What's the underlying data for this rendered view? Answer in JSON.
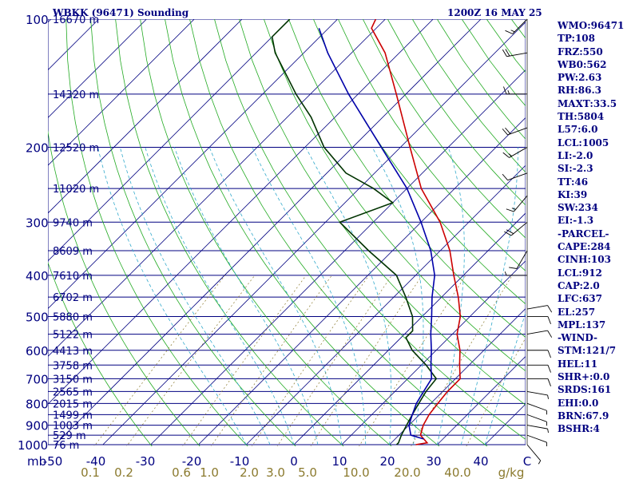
{
  "header": {
    "station": "WBKK (96471) Sounding",
    "datetime": "1200Z 16 MAY 25"
  },
  "indices": [
    "WMO:96471",
    "TP:108",
    "FRZ:550",
    "WB0:562",
    "PW:2.63",
    "RH:86.3",
    "MAXT:33.5",
    "TH:5804",
    "L57:6.0",
    "LCL:1005",
    "LI:-2.0",
    "SI:-2.3",
    "TT:46",
    "KI:39",
    "SW:234",
    "EI:-1.3",
    "-PARCEL-",
    "CAPE:284",
    "CINH:103",
    "LCL:912",
    "CAP:2.0",
    "LFC:637",
    "EL:257",
    "MPL:137",
    "-WIND-",
    "STM:121/7",
    "HEL:11",
    "SHR+:0.0",
    "SRDS:161",
    "EHI:0.0",
    "BRN:67.9",
    "BSHR:4"
  ],
  "chart_data": {
    "type": "line",
    "title": "",
    "ylabel": "mb",
    "xlabel": "C",
    "mixing_ratio_unit": "g/kg",
    "pressure_levels": [
      {
        "p": 100,
        "label": "100",
        "height": "16670 m"
      },
      {
        "p": 150,
        "label": "",
        "height": "14320 m"
      },
      {
        "p": 200,
        "label": "200",
        "height": "12520 m"
      },
      {
        "p": 250,
        "label": "",
        "height": "11020 m"
      },
      {
        "p": 300,
        "label": "300",
        "height": "9740 m"
      },
      {
        "p": 350,
        "label": "",
        "height": "8609 m"
      },
      {
        "p": 400,
        "label": "400",
        "height": "7610 m"
      },
      {
        "p": 450,
        "label": "",
        "height": "6702 m"
      },
      {
        "p": 500,
        "label": "500",
        "height": "5880 m"
      },
      {
        "p": 550,
        "label": "",
        "height": "5122 m"
      },
      {
        "p": 600,
        "label": "600",
        "height": "4413 m"
      },
      {
        "p": 650,
        "label": "",
        "height": "3758 m"
      },
      {
        "p": 700,
        "label": "700",
        "height": "3150 m"
      },
      {
        "p": 750,
        "label": "",
        "height": "2565 m"
      },
      {
        "p": 800,
        "label": "800",
        "height": "2015 m"
      },
      {
        "p": 850,
        "label": "",
        "height": "1499 m"
      },
      {
        "p": 900,
        "label": "900",
        "height": "1003 m"
      },
      {
        "p": 950,
        "label": "",
        "height": "529 m"
      },
      {
        "p": 1000,
        "label": "1000",
        "height": "76 m"
      }
    ],
    "temp_ticks": [
      "-50",
      "-40",
      "-30",
      "-20",
      "-10",
      "0",
      "10",
      "20",
      "30",
      "40",
      "C"
    ],
    "mixing_ratio_ticks": [
      "0.1",
      "0.2",
      "0.6",
      "1.0",
      "2.0",
      "3.0",
      "5.0",
      "10.0",
      "20.0",
      "40.0",
      "g/kg"
    ],
    "series": [
      {
        "color": "#cc0000",
        "points": [
          [
            1000,
            25.5
          ],
          [
            990,
            27.5
          ],
          [
            950,
            24.5
          ],
          [
            900,
            23
          ],
          [
            850,
            22
          ],
          [
            800,
            21.5
          ],
          [
            750,
            21
          ],
          [
            700,
            21
          ],
          [
            650,
            18
          ],
          [
            600,
            15
          ],
          [
            550,
            11
          ],
          [
            500,
            8
          ],
          [
            450,
            3.5
          ],
          [
            400,
            -2
          ],
          [
            350,
            -8
          ],
          [
            300,
            -16
          ],
          [
            250,
            -27
          ],
          [
            200,
            -38
          ],
          [
            150,
            -52
          ],
          [
            120,
            -63
          ],
          [
            105,
            -71
          ],
          [
            100,
            -72
          ]
        ]
      },
      {
        "color": "#003300",
        "points": [
          [
            1000,
            21.5
          ],
          [
            990,
            21.5
          ],
          [
            950,
            20.5
          ],
          [
            900,
            19.5
          ],
          [
            850,
            18.5
          ],
          [
            800,
            17.5
          ],
          [
            750,
            16.5
          ],
          [
            700,
            16
          ],
          [
            650,
            11
          ],
          [
            600,
            5
          ],
          [
            560,
            1
          ],
          [
            540,
            1
          ],
          [
            500,
            -2
          ],
          [
            450,
            -7.5
          ],
          [
            400,
            -14
          ],
          [
            350,
            -25
          ],
          [
            300,
            -37
          ],
          [
            270,
            -30
          ],
          [
            250,
            -37
          ],
          [
            230,
            -46
          ],
          [
            200,
            -56
          ],
          [
            170,
            -65
          ],
          [
            150,
            -73
          ],
          [
            120,
            -86
          ],
          [
            110,
            -90
          ],
          [
            100,
            -90
          ]
        ]
      },
      {
        "color": "#0000aa",
        "points": [
          [
            970,
            26
          ],
          [
            950,
            22.5
          ],
          [
            900,
            20
          ],
          [
            850,
            18.5
          ],
          [
            800,
            17
          ],
          [
            750,
            16
          ],
          [
            700,
            15
          ],
          [
            650,
            12
          ],
          [
            600,
            9
          ],
          [
            550,
            5.5
          ],
          [
            500,
            2
          ],
          [
            450,
            -2
          ],
          [
            400,
            -6
          ],
          [
            350,
            -12
          ],
          [
            300,
            -20
          ],
          [
            250,
            -30
          ],
          [
            200,
            -44
          ],
          [
            150,
            -62
          ],
          [
            120,
            -75
          ],
          [
            105,
            -82
          ]
        ]
      }
    ],
    "wind_barbs": [
      {
        "p": 100,
        "dir": 225,
        "spd": 15
      },
      {
        "p": 120,
        "dir": 260,
        "spd": 20
      },
      {
        "p": 150,
        "dir": 270,
        "spd": 15
      },
      {
        "p": 180,
        "dir": 250,
        "spd": 20
      },
      {
        "p": 200,
        "dir": 240,
        "spd": 15
      },
      {
        "p": 230,
        "dir": 250,
        "spd": 10
      },
      {
        "p": 260,
        "dir": 220,
        "spd": 15
      },
      {
        "p": 300,
        "dir": 230,
        "spd": 20
      },
      {
        "p": 350,
        "dir": 210,
        "spd": 10
      },
      {
        "p": 400,
        "dir": 270,
        "spd": 5
      },
      {
        "p": 480,
        "dir": 80,
        "spd": 10
      },
      {
        "p": 500,
        "dir": 90,
        "spd": 10
      },
      {
        "p": 550,
        "dir": 80,
        "spd": 10
      },
      {
        "p": 600,
        "dir": 90,
        "spd": 10
      },
      {
        "p": 650,
        "dir": 90,
        "spd": 10
      },
      {
        "p": 700,
        "dir": 90,
        "spd": 10
      },
      {
        "p": 750,
        "dir": 100,
        "spd": 5
      },
      {
        "p": 800,
        "dir": 110,
        "spd": 5
      },
      {
        "p": 850,
        "dir": 110,
        "spd": 5
      },
      {
        "p": 900,
        "dir": 100,
        "spd": 5
      },
      {
        "p": 950,
        "dir": 110,
        "spd": 5
      },
      {
        "p": 1000,
        "dir": 140,
        "spd": 5
      }
    ]
  }
}
